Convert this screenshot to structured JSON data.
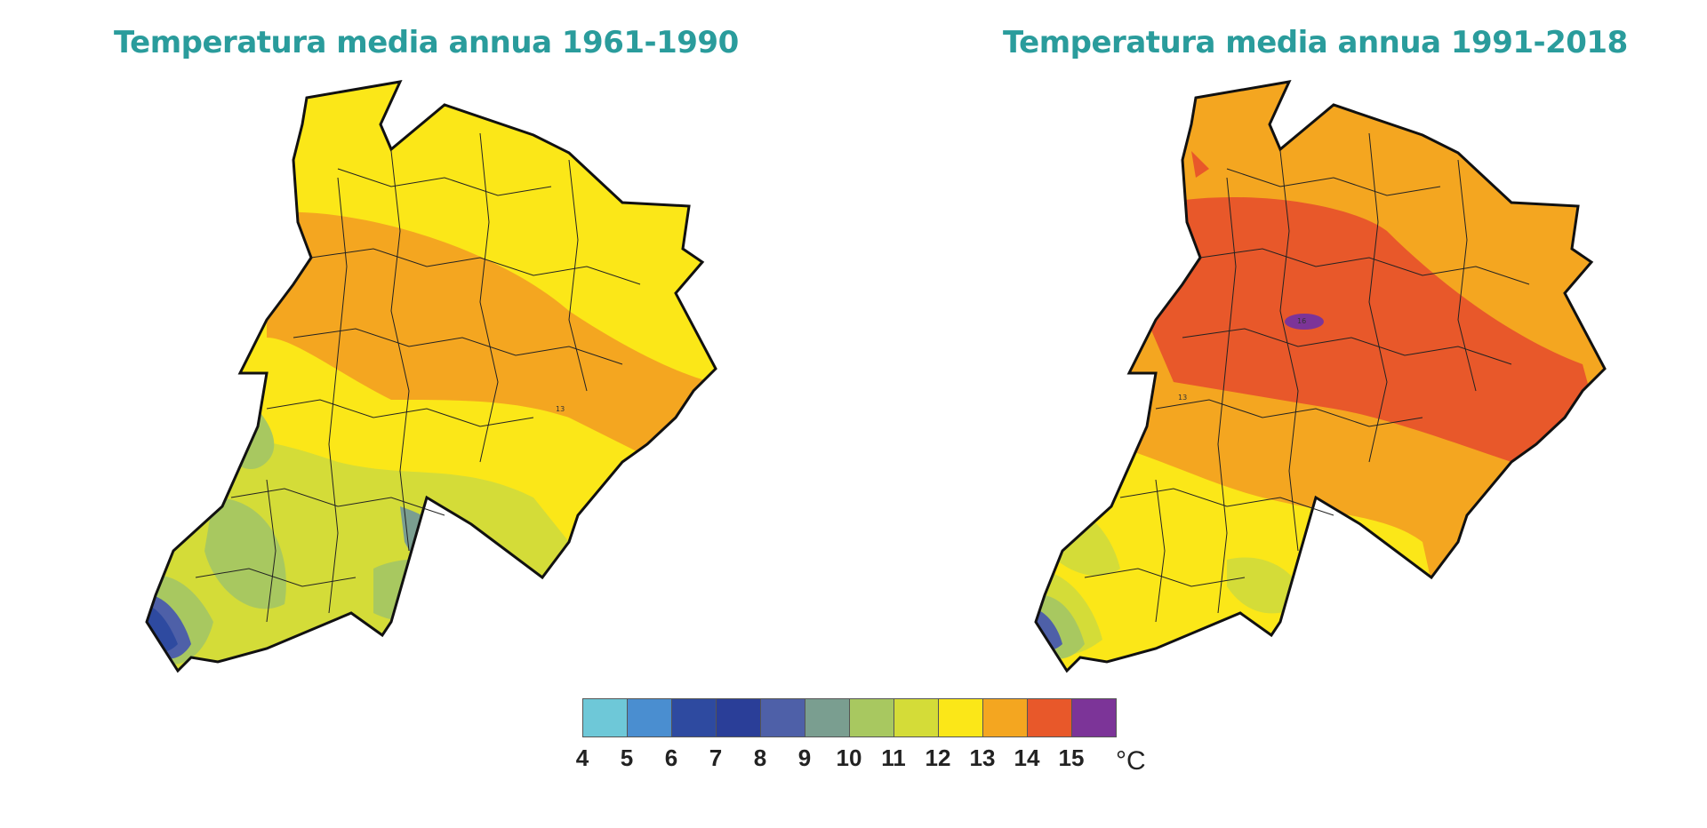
{
  "maps": [
    {
      "title": "Temperatura media annua 1961-1990",
      "period": "1961-1990"
    },
    {
      "title": "Temperatura media annua 1991-2018",
      "period": "1991-2018"
    }
  ],
  "legend": {
    "unit": "°C",
    "ticks": [
      "4",
      "5",
      "6",
      "7",
      "8",
      "9",
      "10",
      "11",
      "12",
      "13",
      "14",
      "15"
    ],
    "colors": [
      "#6ec8d8",
      "#4a8ed0",
      "#2e4aa0",
      "#2a3e98",
      "#4e60a8",
      "#7a9e90",
      "#a8c860",
      "#d4dc38",
      "#fbe718",
      "#f4a620",
      "#e8582a",
      "#7c3498"
    ]
  },
  "contour_labels": {
    "left": "13",
    "right_center": "16",
    "right_side": "13"
  }
}
